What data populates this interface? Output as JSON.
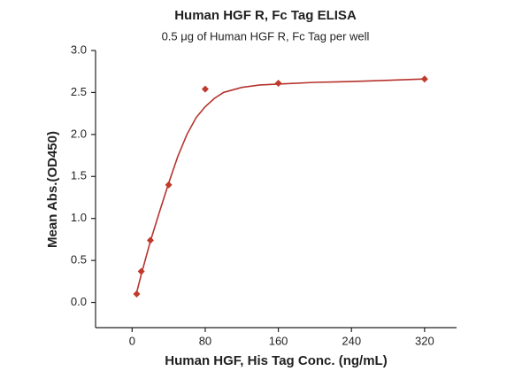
{
  "chart_data": {
    "type": "scatter",
    "title": "Human HGF R, Fc Tag ELISA",
    "subtitle": "0.5 μg of Human HGF R, Fc Tag per well",
    "x_label": "Human HGF, His Tag Conc. (ng/mL)",
    "y_label": "Mean Abs.(OD450)",
    "x": [
      5,
      10,
      20,
      40,
      80,
      160,
      320
    ],
    "values": [
      0.1,
      0.37,
      0.74,
      1.4,
      2.54,
      2.61,
      2.66
    ],
    "color": "#c0392b",
    "fit": {
      "color": "#b5332e",
      "x": [
        5,
        10,
        20,
        30,
        40,
        50,
        60,
        70,
        80,
        90,
        100,
        120,
        140,
        160,
        200,
        240,
        280,
        320
      ],
      "values": [
        0.12,
        0.33,
        0.73,
        1.08,
        1.42,
        1.74,
        2.0,
        2.2,
        2.33,
        2.43,
        2.5,
        2.56,
        2.59,
        2.6,
        2.62,
        2.63,
        2.645,
        2.66
      ]
    },
    "xlim": [
      -40,
      355
    ],
    "ylim": [
      -0.3,
      3.0
    ],
    "xticks": [
      0,
      80,
      160,
      240,
      320
    ],
    "yticks": [
      {
        "value": 0,
        "label": "0.0"
      },
      0.5,
      {
        "value": 1,
        "label": "1.0"
      },
      1.5,
      {
        "value": 2,
        "label": "2.0"
      },
      2.5,
      {
        "value": 3,
        "label": "3.0"
      }
    ]
  }
}
